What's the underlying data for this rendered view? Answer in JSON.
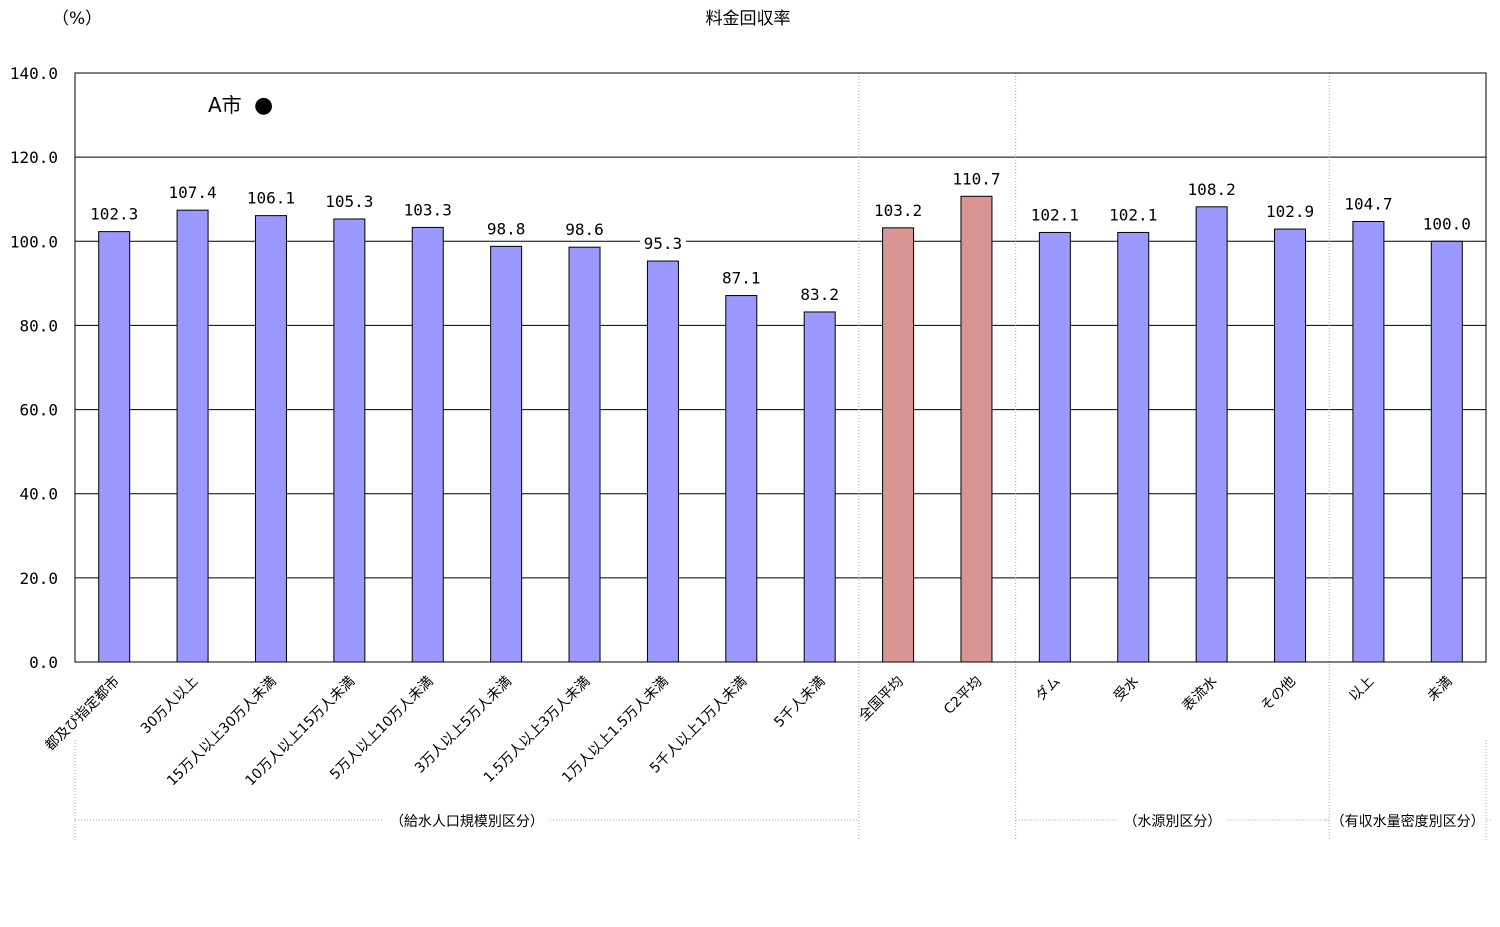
{
  "chart_data": {
    "type": "bar",
    "title": "料金回収率",
    "unit_label": "（%）",
    "ylim": [
      0,
      140
    ],
    "yticks": [
      "0.0",
      "20.0",
      "40.0",
      "60.0",
      "80.0",
      "100.0",
      "120.0",
      "140.0"
    ],
    "grid": true,
    "categories": [
      "都及び指定都市",
      "30万人以上",
      "15万人以上30万人未満",
      "10万人以上15万人未満",
      "5万人以上10万人未満",
      "3万人以上5万人未満",
      "1.5万人以上3万人未満",
      "1万人以上1.5万人未満",
      "5千人以上1万人未満",
      "5千人未満",
      "全国平均",
      "C2平均",
      "ダム",
      "受水",
      "表流水",
      "その他",
      "以上",
      "未満"
    ],
    "values": [
      102.3,
      107.4,
      106.1,
      105.3,
      103.3,
      98.8,
      98.6,
      95.3,
      87.1,
      83.2,
      103.2,
      110.7,
      102.1,
      102.1,
      108.2,
      102.9,
      104.7,
      100.0
    ],
    "value_labels": [
      "102.3",
      "107.4",
      "106.1",
      "105.3",
      "103.3",
      "98.8",
      "98.6",
      "95.3",
      "87.1",
      "83.2",
      "103.2",
      "110.7",
      "102.1",
      "102.1",
      "108.2",
      "102.9",
      "104.7",
      "100.0"
    ],
    "highlight_indices": [
      10,
      11
    ],
    "colors": {
      "bar": "#9999FF",
      "highlight": "#D99594",
      "grid": "#000000",
      "separator": "#A6A6A6"
    },
    "groups": [
      {
        "label": "（給水人口規模別区分）",
        "start": 0,
        "end": 9
      },
      {
        "label": "（水源別区分）",
        "start": 12,
        "end": 15
      },
      {
        "label": "（有収水量密度別区分）",
        "start": 16,
        "end": 17
      }
    ],
    "annotation": {
      "text": "A市",
      "marker": "●"
    }
  }
}
